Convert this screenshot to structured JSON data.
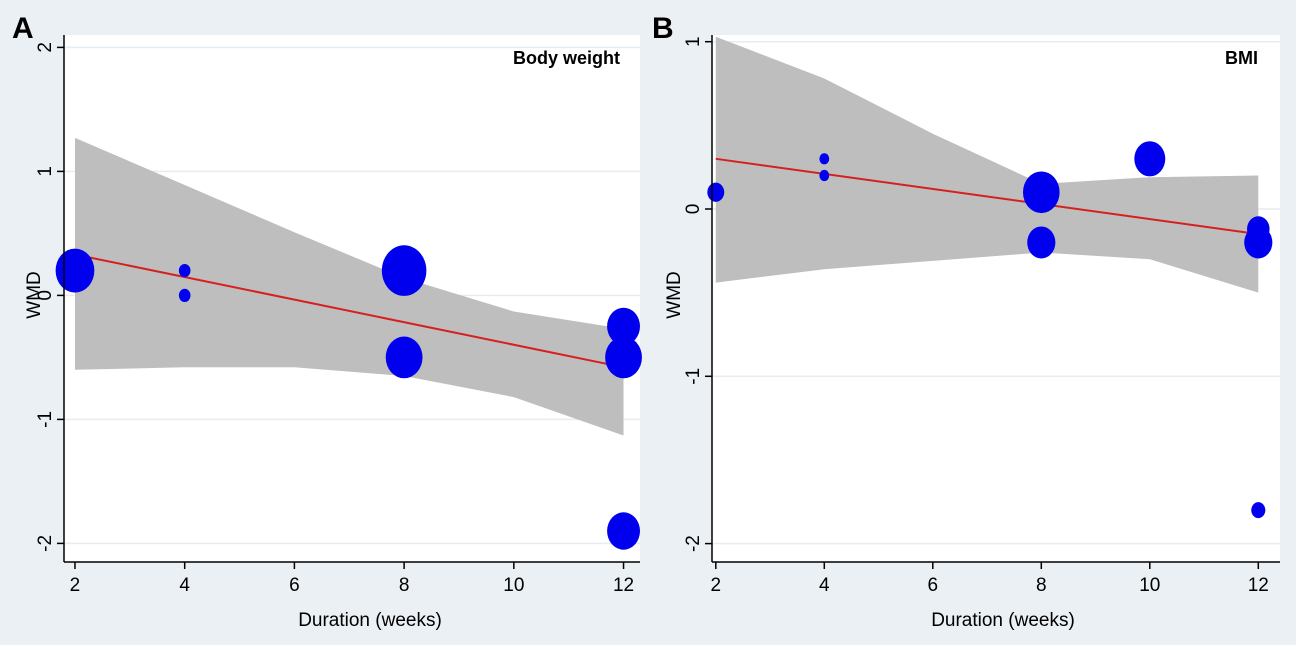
{
  "colors": {
    "outer_background": "#eaf0f4",
    "plot_background": "#ffffff",
    "ci_band": "#bebebe",
    "fit_line": "#d62020",
    "points": "#0000ee",
    "gridline": "#e6ecf0"
  },
  "chart_data": [
    {
      "type": "scatter",
      "panel_label": "A",
      "title": "Body weight",
      "xlabel": "Duration (weeks)",
      "ylabel": "WMD",
      "xlim": [
        1.8,
        12.3
      ],
      "ylim": [
        -2.15,
        2.1
      ],
      "xticks": [
        2,
        4,
        6,
        8,
        10,
        12
      ],
      "yticks": [
        -2,
        -1,
        0,
        1,
        2
      ],
      "grid": true,
      "points": [
        {
          "x": 2,
          "y": 0.2,
          "weight": 1.0
        },
        {
          "x": 4,
          "y": 0.2,
          "weight": 0.3
        },
        {
          "x": 4,
          "y": 0.0,
          "weight": 0.3
        },
        {
          "x": 8,
          "y": 0.2,
          "weight": 1.15
        },
        {
          "x": 8,
          "y": -0.5,
          "weight": 0.95
        },
        {
          "x": 12,
          "y": -0.25,
          "weight": 0.85
        },
        {
          "x": 12,
          "y": -0.5,
          "weight": 0.95
        },
        {
          "x": 12,
          "y": -1.9,
          "weight": 0.85
        }
      ],
      "fit_line": {
        "x": [
          2,
          12
        ],
        "y": [
          0.33,
          -0.58
        ]
      },
      "ci_band": {
        "x": [
          2,
          4,
          6,
          8,
          10,
          12
        ],
        "upper": [
          1.27,
          0.89,
          0.51,
          0.14,
          -0.13,
          -0.27
        ],
        "lower": [
          -0.6,
          -0.58,
          -0.58,
          -0.65,
          -0.82,
          -1.13
        ]
      }
    },
    {
      "type": "scatter",
      "panel_label": "B",
      "title": "BMI",
      "xlabel": "Duration (weeks)",
      "ylabel": "WMD",
      "xlim": [
        1.93,
        12.4
      ],
      "ylim": [
        -2.11,
        1.04
      ],
      "xticks": [
        2,
        4,
        6,
        8,
        10,
        12
      ],
      "yticks": [
        -2,
        -1,
        0,
        1
      ],
      "grid": true,
      "points": [
        {
          "x": 2,
          "y": 0.1,
          "weight": 0.6
        },
        {
          "x": 4,
          "y": 0.3,
          "weight": 0.35
        },
        {
          "x": 4,
          "y": 0.2,
          "weight": 0.35
        },
        {
          "x": 8,
          "y": 0.1,
          "weight": 1.3
        },
        {
          "x": 8,
          "y": -0.2,
          "weight": 1.0
        },
        {
          "x": 10,
          "y": 0.3,
          "weight": 1.1
        },
        {
          "x": 12,
          "y": -0.12,
          "weight": 0.8
        },
        {
          "x": 12,
          "y": -0.2,
          "weight": 1.0
        },
        {
          "x": 12,
          "y": -1.8,
          "weight": 0.5
        }
      ],
      "fit_line": {
        "x": [
          2,
          12
        ],
        "y": [
          0.3,
          -0.15
        ]
      },
      "ci_band": {
        "x": [
          2,
          4,
          6,
          8,
          10,
          12
        ],
        "upper": [
          1.03,
          0.78,
          0.45,
          0.15,
          0.19,
          0.2
        ],
        "lower": [
          -0.44,
          -0.36,
          -0.31,
          -0.26,
          -0.3,
          -0.5
        ]
      }
    }
  ]
}
